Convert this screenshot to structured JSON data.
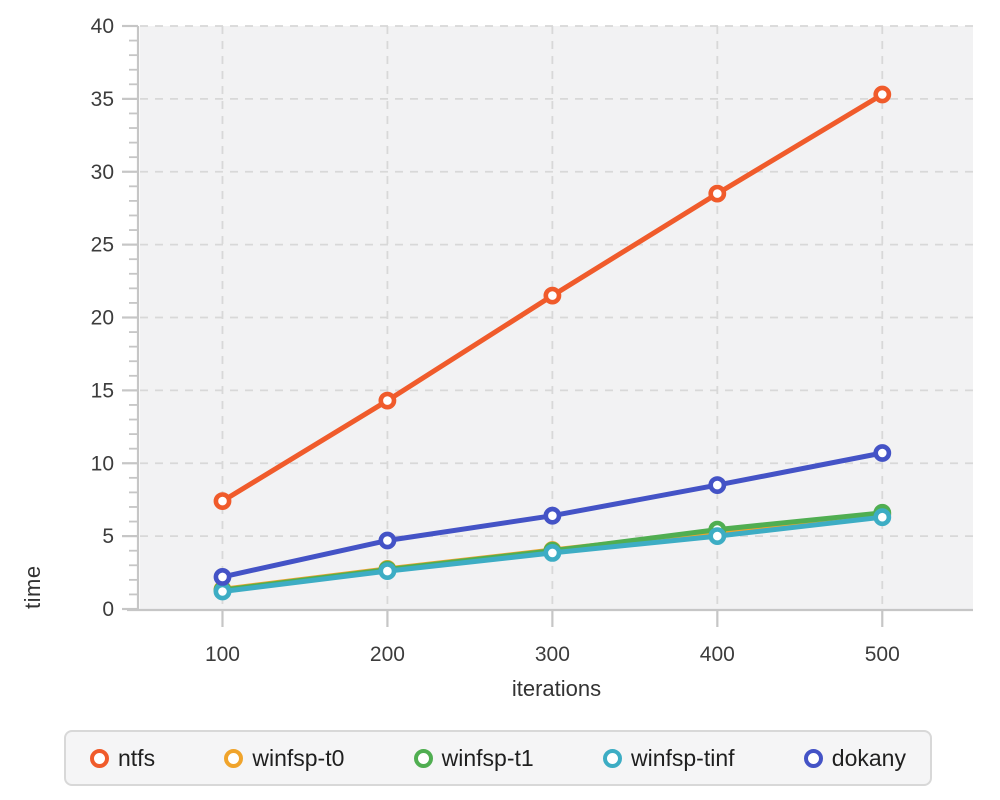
{
  "chart_data": {
    "type": "line",
    "title": "",
    "xlabel": "iterations",
    "ylabel": "time",
    "x": [
      100,
      200,
      300,
      400,
      500
    ],
    "x_ticks": [
      100,
      200,
      300,
      400,
      500
    ],
    "y_ticks": [
      0,
      5,
      10,
      15,
      20,
      25,
      30,
      35,
      40
    ],
    "xlim": [
      50,
      555
    ],
    "ylim": [
      0,
      40
    ],
    "y_minor_step": 1,
    "grid": "dashed",
    "legend_position": "bottom",
    "series": [
      {
        "name": "ntfs",
        "color": "#f05b2b",
        "values": [
          7.4,
          14.3,
          21.5,
          28.5,
          35.3
        ]
      },
      {
        "name": "winfsp-t0",
        "color": "#f0a42c",
        "values": [
          1.35,
          2.75,
          4.05,
          5.3,
          6.5
        ]
      },
      {
        "name": "winfsp-t1",
        "color": "#50ae51",
        "values": [
          1.3,
          2.7,
          4.0,
          5.45,
          6.6
        ]
      },
      {
        "name": "winfsp-tinf",
        "color": "#3dadc4",
        "values": [
          1.2,
          2.6,
          3.85,
          5.0,
          6.3
        ]
      },
      {
        "name": "dokany",
        "color": "#4453c6",
        "values": [
          2.2,
          4.7,
          6.4,
          8.5,
          10.7
        ]
      }
    ]
  },
  "styles": {
    "plot_bg": "#f2f2f3",
    "grid_color": "#d8d8d8",
    "axis_color": "#c6c6c6",
    "tick_label_color": "#3c3c3c",
    "axis_title_color": "#333333",
    "legend_bg": "#f5f5f6",
    "legend_border": "#d8d8d8",
    "marker_fill": "#ffffff"
  }
}
